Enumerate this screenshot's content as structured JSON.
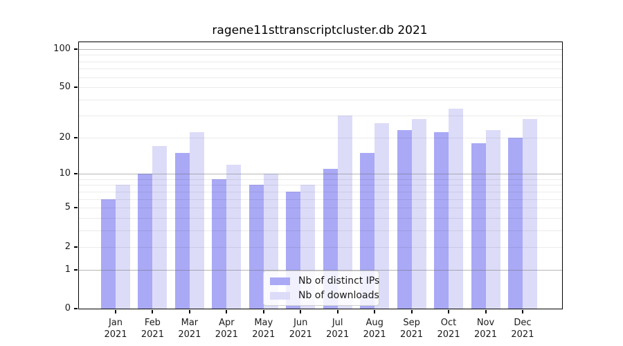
{
  "title": "ragene11sttranscriptcluster.db 2021",
  "chart_data": {
    "type": "bar",
    "title": "ragene11sttranscriptcluster.db 2021",
    "categories": [
      "Jan",
      "Feb",
      "Mar",
      "Apr",
      "May",
      "Jun",
      "Jul",
      "Aug",
      "Sep",
      "Oct",
      "Nov",
      "Dec"
    ],
    "category_year": "2021",
    "series": [
      {
        "name": "Nb of distinct IPs",
        "color": "#a9a9f6",
        "values": [
          6,
          10,
          15,
          9,
          8,
          7,
          11,
          15,
          23,
          22,
          18,
          20
        ]
      },
      {
        "name": "Nb of downloads",
        "color": "#dcdcf9",
        "values": [
          8,
          17,
          22,
          12,
          10,
          8,
          30,
          26,
          28,
          34,
          23,
          28
        ]
      }
    ],
    "y_scale": "log1p",
    "ylim": [
      0,
      113
    ],
    "y_ticks": [
      0,
      1,
      2,
      5,
      10,
      20,
      50,
      100
    ],
    "y_major_gridlines": [
      1,
      10,
      100
    ],
    "y_minor_gridlines": [
      2,
      3,
      4,
      5,
      6,
      7,
      8,
      9,
      20,
      30,
      40,
      50,
      60,
      70,
      80,
      90
    ],
    "grid": "horizontal, drawn over bars",
    "legend_position": "lower center inside plot",
    "xlabel": "",
    "ylabel": ""
  }
}
